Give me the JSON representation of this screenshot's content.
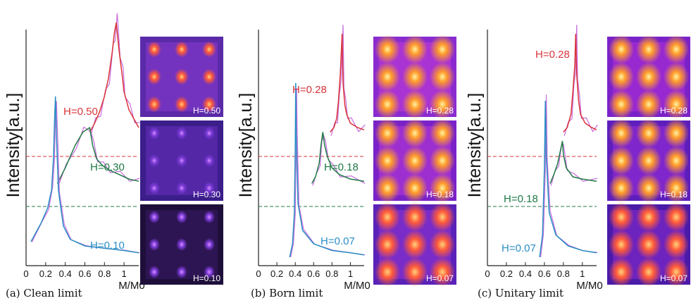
{
  "colors": {
    "high": "#d9343a",
    "mid": "#1f7a45",
    "low": "#2a8ec4",
    "overlay": "#c86be0"
  },
  "chart_data": [
    {
      "id": "a",
      "type": "line",
      "ylabel": "Intensity[a.u.]",
      "xlabel": "M/M0",
      "xticks": [
        "0",
        "0.2",
        "0.4",
        "0.6",
        "0.8",
        "1"
      ],
      "xlim": [
        0,
        1.15
      ],
      "caption": "(a) Clean limit",
      "labels": [
        "H=0.50",
        "H=0.30",
        "H=0.10"
      ],
      "series": [
        {
          "name": "H=0.50",
          "offset": 0.56,
          "overlay": true,
          "points": [
            [
              0.65,
              0.56
            ],
            [
              0.7,
              0.6
            ],
            [
              0.75,
              0.65
            ],
            [
              0.8,
              0.72
            ],
            [
              0.84,
              0.8
            ],
            [
              0.88,
              0.92
            ],
            [
              0.9,
              1.0
            ],
            [
              0.92,
              1.05
            ],
            [
              0.95,
              0.92
            ],
            [
              0.98,
              0.82
            ],
            [
              1.0,
              0.74
            ],
            [
              1.05,
              0.66
            ],
            [
              1.1,
              0.62
            ],
            [
              1.15,
              0.58
            ]
          ]
        },
        {
          "name": "H=0.30",
          "offset": 0.33,
          "overlay": true,
          "points": [
            [
              0.32,
              0.33
            ],
            [
              0.4,
              0.4
            ],
            [
              0.5,
              0.5
            ],
            [
              0.58,
              0.56
            ],
            [
              0.65,
              0.58
            ],
            [
              0.68,
              0.5
            ],
            [
              0.72,
              0.44
            ],
            [
              0.78,
              0.41
            ],
            [
              0.85,
              0.39
            ],
            [
              0.95,
              0.37
            ],
            [
              1.05,
              0.35
            ],
            [
              1.15,
              0.34
            ]
          ]
        },
        {
          "name": "H=0.10",
          "offset": 0.0,
          "overlay": true,
          "points": [
            [
              0.05,
              0.07
            ],
            [
              0.15,
              0.15
            ],
            [
              0.22,
              0.22
            ],
            [
              0.26,
              0.3
            ],
            [
              0.28,
              0.45
            ],
            [
              0.29,
              0.6
            ],
            [
              0.3,
              0.72
            ],
            [
              0.31,
              0.55
            ],
            [
              0.33,
              0.3
            ],
            [
              0.38,
              0.14
            ],
            [
              0.45,
              0.08
            ],
            [
              0.6,
              0.05
            ],
            [
              0.8,
              0.04
            ],
            [
              1.0,
              0.03
            ],
            [
              1.15,
              0.02
            ]
          ]
        }
      ],
      "maps": [
        "H=0.50",
        "H=0.30",
        "H=0.10"
      ]
    },
    {
      "id": "b",
      "type": "line",
      "ylabel": "Intensity[a.u.]",
      "xlabel": "M/M0",
      "xticks": [
        "0",
        "0.2",
        "0.4",
        "0.6",
        "0.8",
        "1"
      ],
      "xlim": [
        0,
        1.15
      ],
      "caption": "(b) Born limit",
      "labels": [
        "H=0.28",
        "H=0.18",
        "H=0.07"
      ],
      "series": [
        {
          "name": "H=0.28",
          "offset": 0.56,
          "overlay": true,
          "points": [
            [
              0.78,
              0.56
            ],
            [
              0.82,
              0.58
            ],
            [
              0.85,
              0.62
            ],
            [
              0.87,
              0.7
            ],
            [
              0.89,
              0.82
            ],
            [
              0.91,
              1.0
            ],
            [
              0.92,
              0.78
            ],
            [
              0.94,
              0.68
            ],
            [
              0.96,
              0.64
            ],
            [
              1.0,
              0.6
            ],
            [
              1.08,
              0.58
            ],
            [
              1.15,
              0.57
            ]
          ]
        },
        {
          "name": "H=0.18",
          "offset": 0.33,
          "overlay": true,
          "points": [
            [
              0.58,
              0.33
            ],
            [
              0.62,
              0.36
            ],
            [
              0.66,
              0.42
            ],
            [
              0.68,
              0.5
            ],
            [
              0.7,
              0.56
            ],
            [
              0.72,
              0.5
            ],
            [
              0.75,
              0.45
            ],
            [
              0.8,
              0.4
            ],
            [
              0.88,
              0.37
            ],
            [
              1.0,
              0.35
            ],
            [
              1.15,
              0.34
            ]
          ]
        },
        {
          "name": "H=0.07",
          "offset": 0.0,
          "overlay": true,
          "points": [
            [
              0.34,
              0.0
            ],
            [
              0.37,
              0.06
            ],
            [
              0.39,
              0.2
            ],
            [
              0.4,
              0.5
            ],
            [
              0.405,
              0.78
            ],
            [
              0.41,
              0.55
            ],
            [
              0.43,
              0.24
            ],
            [
              0.48,
              0.12
            ],
            [
              0.6,
              0.06
            ],
            [
              0.8,
              0.03
            ],
            [
              1.0,
              0.02
            ],
            [
              1.15,
              0.01
            ]
          ]
        }
      ],
      "maps": [
        "H=0.28",
        "H=0.18",
        "H=0.07"
      ]
    },
    {
      "id": "c",
      "type": "line",
      "ylabel": "Intensity[a.u.]",
      "xlabel": "M/M0",
      "xticks": [
        "0",
        "0.2",
        "0.4",
        "0.6",
        "0.8",
        "1"
      ],
      "xlim": [
        0,
        1.15
      ],
      "caption": "(c) Unitary limit",
      "labels": [
        "H=0.28",
        "H=0.18",
        "H=0.07"
      ],
      "series": [
        {
          "name": "H=0.28",
          "offset": 0.56,
          "overlay": true,
          "points": [
            [
              0.8,
              0.56
            ],
            [
              0.84,
              0.58
            ],
            [
              0.88,
              0.64
            ],
            [
              0.9,
              0.74
            ],
            [
              0.92,
              0.86
            ],
            [
              0.93,
              1.0
            ],
            [
              0.94,
              0.82
            ],
            [
              0.96,
              0.7
            ],
            [
              0.98,
              0.64
            ],
            [
              1.03,
              0.6
            ],
            [
              1.1,
              0.58
            ],
            [
              1.15,
              0.57
            ]
          ]
        },
        {
          "name": "H=0.18",
          "offset": 0.33,
          "overlay": true,
          "points": [
            [
              0.66,
              0.33
            ],
            [
              0.7,
              0.37
            ],
            [
              0.74,
              0.42
            ],
            [
              0.77,
              0.48
            ],
            [
              0.79,
              0.52
            ],
            [
              0.8,
              0.46
            ],
            [
              0.83,
              0.4
            ],
            [
              0.9,
              0.36
            ],
            [
              1.0,
              0.35
            ],
            [
              1.15,
              0.34
            ]
          ]
        },
        {
          "name": "H=0.07",
          "offset": 0.0,
          "overlay": true,
          "points": [
            [
              0.55,
              0.0
            ],
            [
              0.58,
              0.1
            ],
            [
              0.6,
              0.4
            ],
            [
              0.61,
              0.7
            ],
            [
              0.62,
              0.45
            ],
            [
              0.65,
              0.2
            ],
            [
              0.72,
              0.1
            ],
            [
              0.85,
              0.05
            ],
            [
              1.0,
              0.03
            ],
            [
              1.15,
              0.02
            ]
          ]
        }
      ],
      "maps": [
        "H=0.28",
        "H=0.18",
        "H=0.07"
      ]
    }
  ]
}
